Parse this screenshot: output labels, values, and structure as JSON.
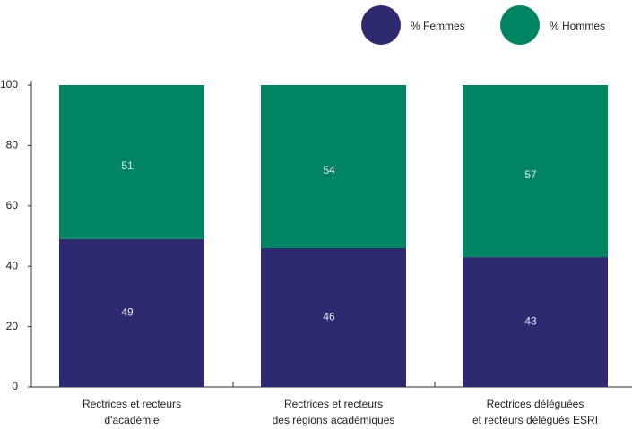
{
  "chart_data": {
    "type": "stacked_bar",
    "categories": [
      [
        "Rectrices et recteurs",
        "d'académie"
      ],
      [
        "Rectrices et recteurs",
        "des régions académiques"
      ],
      [
        "Rectrices déléguées",
        "et recteurs délégués ESRI"
      ]
    ],
    "series": [
      {
        "name": "% Femmes",
        "color": "#2d2a72",
        "values": [
          49,
          46,
          43
        ]
      },
      {
        "name": "% Hommes",
        "color": "#008462",
        "values": [
          51,
          54,
          57
        ]
      }
    ],
    "ylim": [
      0,
      100
    ],
    "yticks": [
      0,
      20,
      40,
      60,
      80,
      100
    ]
  }
}
